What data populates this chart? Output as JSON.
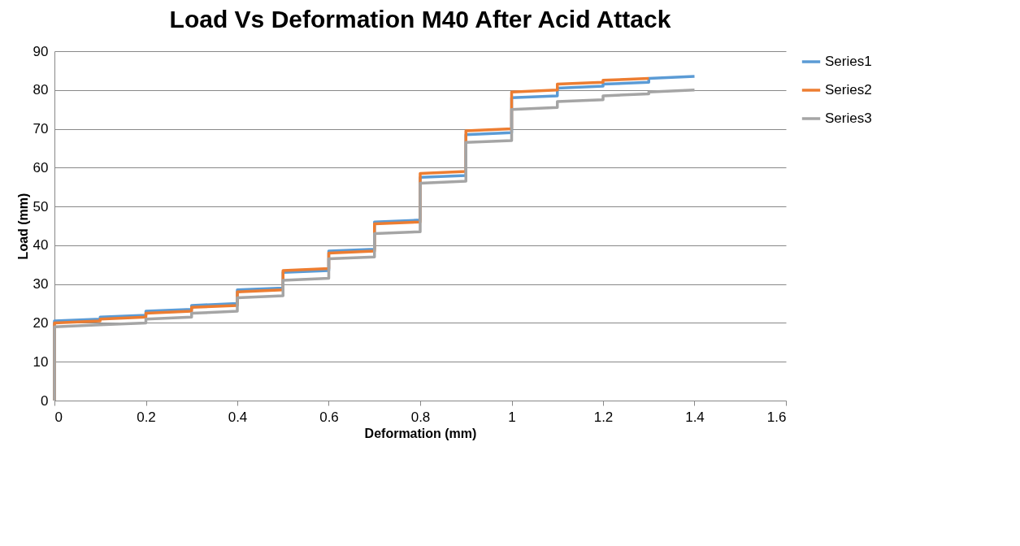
{
  "chart_data": {
    "type": "line",
    "title": "Load Vs Deformation M40 After Acid Attack",
    "xlabel": "Deformation (mm)",
    "ylabel": "Load (mm)",
    "xlim": [
      0,
      1.6
    ],
    "xticks": [
      0,
      0.2,
      0.4,
      0.6,
      0.8,
      1,
      1.2,
      1.4,
      1.6
    ],
    "ylim": [
      0,
      90
    ],
    "yticks": [
      0,
      10,
      20,
      30,
      40,
      50,
      60,
      70,
      80,
      90
    ],
    "grid": "y",
    "legend": "right",
    "marker": "none",
    "line_style": "solid",
    "series": [
      {
        "name": "Series1",
        "color": "#5b9bd5",
        "x": [
          0,
          0,
          0.1,
          0.1,
          0.2,
          0.2,
          0.3,
          0.3,
          0.4,
          0.4,
          0.5,
          0.5,
          0.6,
          0.6,
          0.7,
          0.7,
          0.8,
          0.8,
          0.9,
          0.9,
          1,
          1,
          1.1,
          1.1,
          1.2,
          1.2,
          1.3,
          1.3,
          1.4
        ],
        "values": [
          0,
          20.5,
          21,
          21.5,
          22,
          23,
          23.5,
          24.5,
          25,
          28.5,
          29,
          33,
          33.5,
          38.5,
          39,
          46,
          46.5,
          57.5,
          58,
          68.5,
          69,
          78,
          78.5,
          80.5,
          81,
          81.5,
          82,
          83,
          83.5
        ]
      },
      {
        "name": "Series2",
        "color": "#ed7d31",
        "x": [
          0,
          0,
          0.1,
          0.1,
          0.2,
          0.2,
          0.3,
          0.3,
          0.4,
          0.4,
          0.5,
          0.5,
          0.6,
          0.6,
          0.7,
          0.7,
          0.8,
          0.8,
          0.9,
          0.9,
          1,
          1,
          1.1,
          1.1,
          1.2,
          1.2,
          1.3
        ],
        "values": [
          0,
          20,
          20.5,
          21,
          21.5,
          22.5,
          23,
          24,
          24.5,
          28,
          28.5,
          33.5,
          34,
          38,
          38.5,
          45.5,
          46,
          58.5,
          59,
          69.5,
          70,
          79.5,
          80,
          81.5,
          82,
          82.5,
          83
        ]
      },
      {
        "name": "Series3",
        "color": "#a5a5a5",
        "x": [
          0,
          0,
          0.1,
          0.1,
          0.2,
          0.2,
          0.3,
          0.3,
          0.4,
          0.4,
          0.5,
          0.5,
          0.6,
          0.6,
          0.7,
          0.7,
          0.8,
          0.8,
          0.9,
          0.9,
          1,
          1,
          1.1,
          1.1,
          1.2,
          1.2,
          1.3,
          1.3,
          1.4
        ],
        "values": [
          0,
          19,
          19.5,
          19.5,
          20,
          21,
          21.5,
          22.5,
          23,
          26.5,
          27,
          31,
          31.5,
          36.5,
          37,
          43,
          43.5,
          56,
          56.5,
          66.5,
          67,
          75,
          75.5,
          77,
          77.5,
          78.5,
          79,
          79.5,
          80
        ]
      }
    ]
  }
}
